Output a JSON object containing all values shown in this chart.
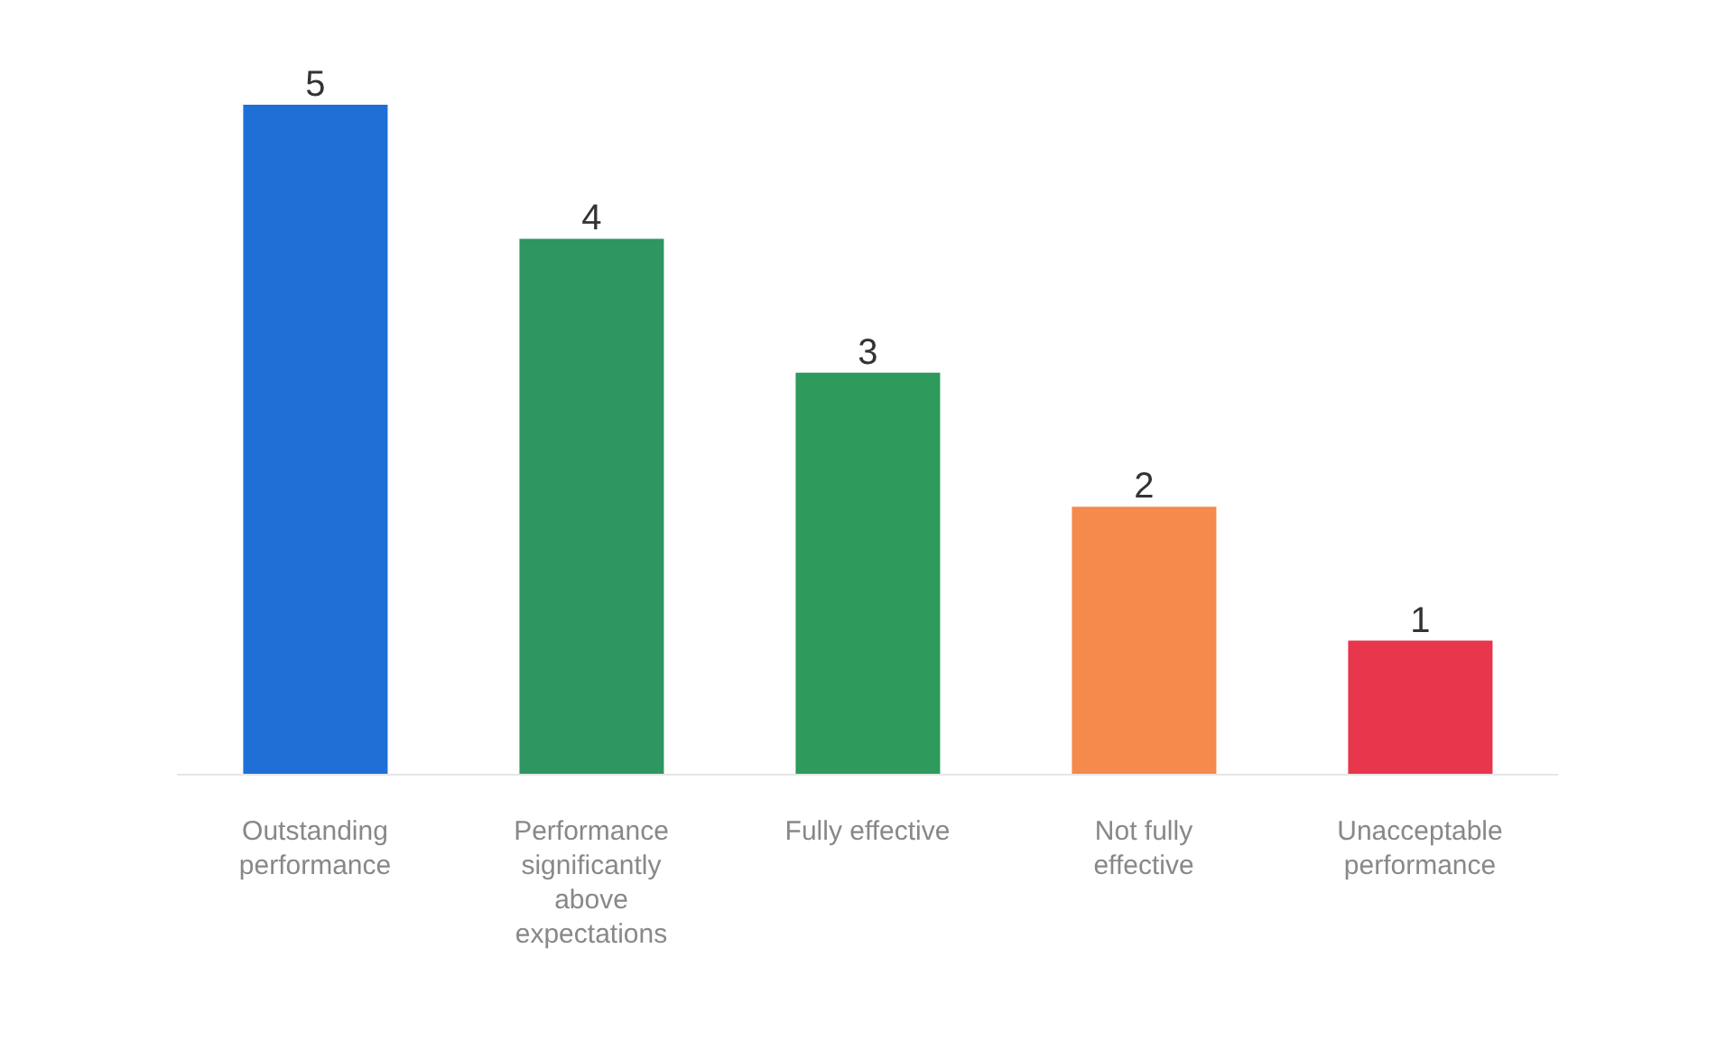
{
  "chart_data": {
    "type": "bar",
    "categories": [
      "Outstanding performance",
      "Performance significantly above expectations",
      "Fully effective",
      "Not fully effective",
      "Unacceptable performance"
    ],
    "values": [
      5,
      4,
      3,
      2,
      1
    ],
    "colors": [
      "#1f6fd6",
      "#2e9660",
      "#2e9a5c",
      "#f58a4c",
      "#e8364c"
    ],
    "data_labels": true
  }
}
